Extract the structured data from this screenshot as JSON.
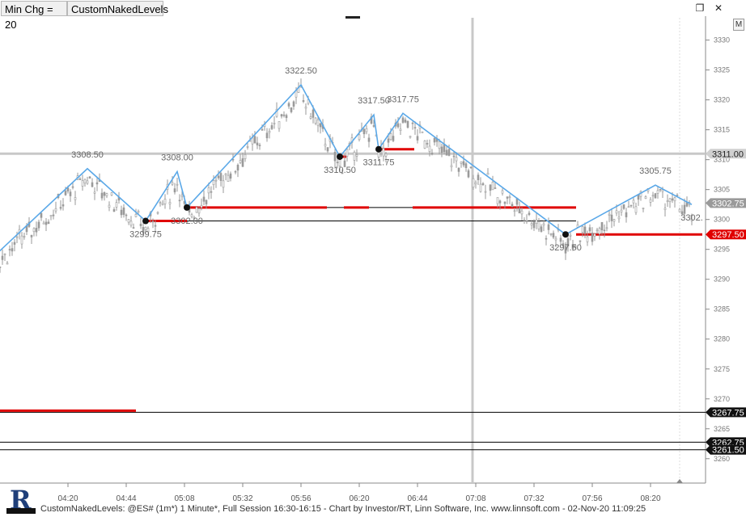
{
  "toolbar": {
    "tab1_label": "Min Chg = 20",
    "tab2_label": "CustomNakedLevels"
  },
  "window": {
    "restore_icon": "restore-icon",
    "close_icon": "close-icon",
    "m_button": "M"
  },
  "footer": {
    "text": "CustomNakedLevels: @ES# (1m*) 1 Minute*, Full Session 16:30-16:15 - Chart by Investor/RT, Linn Software, Inc. www.linnsoft.com - 02-Nov-20 11:09:25"
  },
  "colors": {
    "zigzag": "#5aa8e8",
    "level": "#e00000",
    "candle": "#9a9a9a",
    "cursor": "#c8c8c8",
    "price_tag": "#e00000"
  },
  "chart_data": {
    "type": "candlestick",
    "y_range": [
      3257,
      3334
    ],
    "y_ticks": [
      3260,
      3265,
      3270,
      3275,
      3280,
      3285,
      3290,
      3295,
      3300,
      3305,
      3310,
      3315,
      3320,
      3325,
      3330
    ],
    "x_ticks": [
      "04:20",
      "04:44",
      "05:08",
      "05:32",
      "05:56",
      "06:20",
      "06:44",
      "07:08",
      "07:32",
      "07:56",
      "08:20"
    ],
    "zigzag": [
      {
        "time": "03:25",
        "price": 3284.5,
        "label": ""
      },
      {
        "time": "04:28",
        "price": 3308.5,
        "label": "3308.50"
      },
      {
        "time": "04:52",
        "price": 3299.75,
        "label": "3299.75"
      },
      {
        "time": "05:05",
        "price": 3308.0,
        "label": "3308.00"
      },
      {
        "time": "05:09",
        "price": 3302.0,
        "label": "3302.00"
      },
      {
        "time": "05:56",
        "price": 3322.5,
        "label": "3322.50"
      },
      {
        "time": "06:12",
        "price": 3310.5,
        "label": "3310.50"
      },
      {
        "time": "06:26",
        "price": 3317.5,
        "label": "3317.50"
      },
      {
        "time": "06:28",
        "price": 3311.75,
        "label": "3311.75"
      },
      {
        "time": "06:38",
        "price": 3317.75,
        "label": "3317.75"
      },
      {
        "time": "07:45",
        "price": 3297.5,
        "label": "3297.50"
      },
      {
        "time": "08:22",
        "price": 3305.75,
        "label": "3305.75"
      },
      {
        "time": "08:37",
        "price": 3302.5,
        "label": "3302."
      }
    ],
    "last_price": {
      "value": 3302.75,
      "label": "3302.75"
    },
    "levels": [
      {
        "price": 3311.0,
        "label": "3311.00",
        "style": "gray"
      },
      {
        "price": 3297.5,
        "label": "3297.50",
        "style": "red"
      },
      {
        "price": 3267.75,
        "label": "3267.75",
        "style": "black"
      },
      {
        "price": 3262.75,
        "label": "3262.75",
        "style": "black"
      },
      {
        "price": 3261.5,
        "label": "3261.50",
        "style": "black"
      }
    ]
  }
}
